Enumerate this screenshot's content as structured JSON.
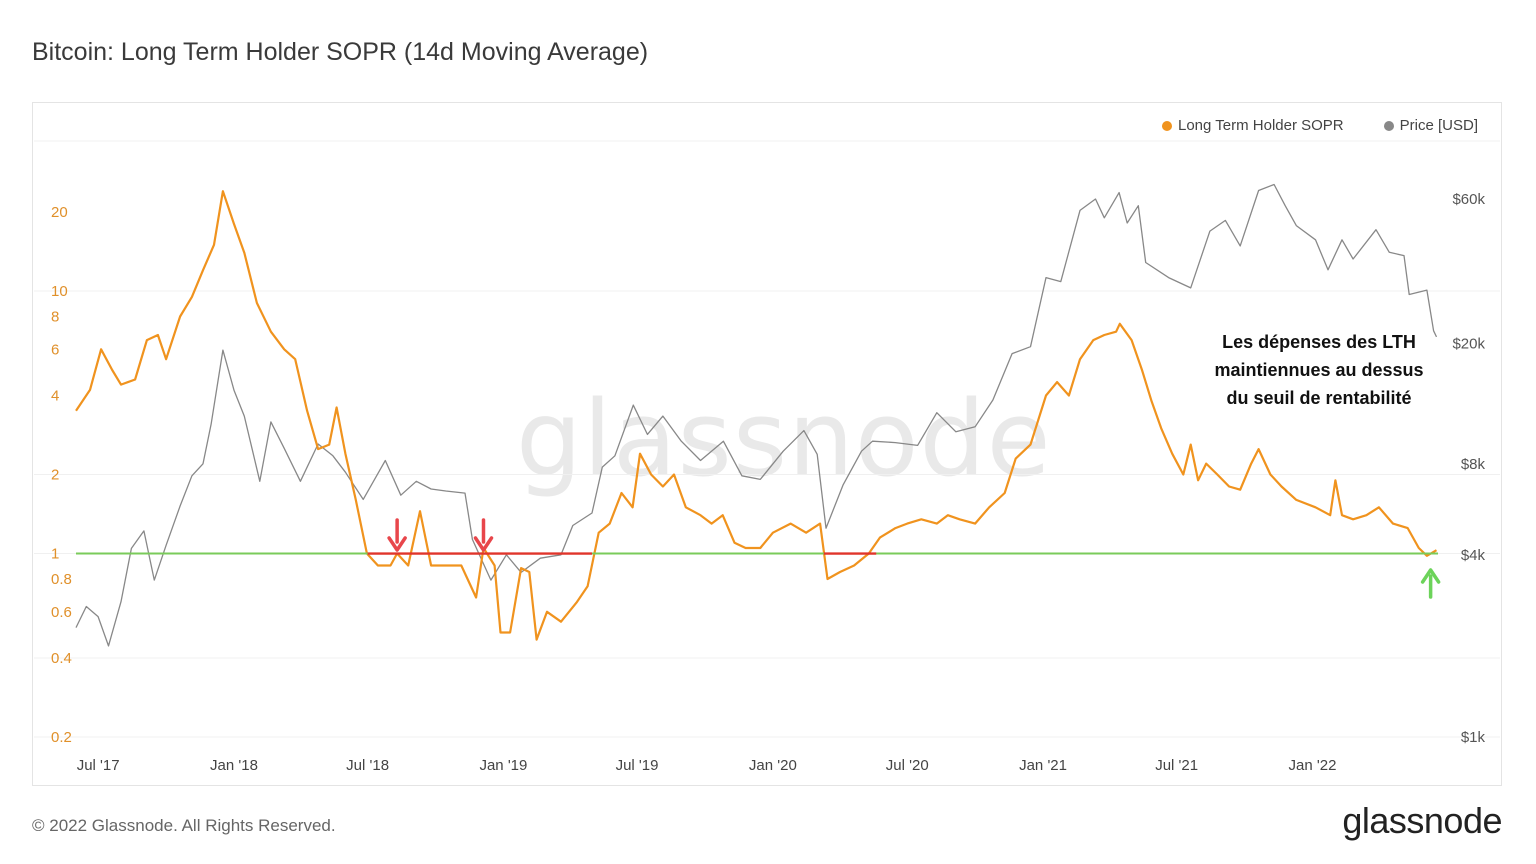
{
  "header": {
    "title": "Bitcoin: Long Term Holder SOPR (14d Moving Average)"
  },
  "footer": {
    "copyright": "© 2022 Glassnode. All Rights Reserved.",
    "brand": "glassnode"
  },
  "watermark": "glassnode",
  "annotation": [
    "Les dépenses des LTH",
    "maintiennues au dessus",
    "du seuil de rentabilité"
  ],
  "colors": {
    "sopr": "#f0931e",
    "price": "#888888",
    "baseline": "#7acb5a",
    "below": "#e0352b",
    "arrow_red": "#e8464b",
    "arrow_green": "#6cd35a"
  },
  "chart_data": {
    "type": "line",
    "legend_position": "top-right",
    "grid": true,
    "x_range": [
      "2017-06-01",
      "2022-06-20"
    ],
    "x_ticks": [
      {
        "date": "2017-07-01",
        "label": "Jul '17"
      },
      {
        "date": "2018-01-01",
        "label": "Jan '18"
      },
      {
        "date": "2018-07-01",
        "label": "Jul '18"
      },
      {
        "date": "2019-01-01",
        "label": "Jan '19"
      },
      {
        "date": "2019-07-01",
        "label": "Jul '19"
      },
      {
        "date": "2020-01-01",
        "label": "Jan '20"
      },
      {
        "date": "2020-07-01",
        "label": "Jul '20"
      },
      {
        "date": "2021-01-01",
        "label": "Jan '21"
      },
      {
        "date": "2021-07-01",
        "label": "Jul '21"
      },
      {
        "date": "2022-01-01",
        "label": "Jan '22"
      }
    ],
    "y_left": {
      "scale": "log",
      "range": [
        0.2,
        35
      ],
      "ticks": [
        {
          "value": 0.2,
          "label": "0.2"
        },
        {
          "value": 0.4,
          "label": "0.4"
        },
        {
          "value": 0.6,
          "label": "0.6"
        },
        {
          "value": 0.8,
          "label": "0.8"
        },
        {
          "value": 1,
          "label": "1"
        },
        {
          "value": 2,
          "label": "2"
        },
        {
          "value": 4,
          "label": "4"
        },
        {
          "value": 6,
          "label": "6"
        },
        {
          "value": 8,
          "label": "8"
        },
        {
          "value": 10,
          "label": "10"
        },
        {
          "value": 20,
          "label": "20"
        }
      ]
    },
    "y_right": {
      "scale": "log",
      "range": [
        1000,
        100000
      ],
      "ticks": [
        {
          "value": 1000,
          "label": "$1k"
        },
        {
          "value": 4000,
          "label": "$4k"
        },
        {
          "value": 8000,
          "label": "$8k"
        },
        {
          "value": 20000,
          "label": "$20k"
        },
        {
          "value": 60000,
          "label": "$60k"
        }
      ]
    },
    "baseline": {
      "value": 1
    },
    "series": [
      {
        "name": "Long Term Holder SOPR",
        "axis": "left",
        "points": [
          [
            "2017-06-01",
            3.5
          ],
          [
            "2017-06-20",
            4.2
          ],
          [
            "2017-07-05",
            6.0
          ],
          [
            "2017-07-20",
            5.0
          ],
          [
            "2017-08-01",
            4.4
          ],
          [
            "2017-08-20",
            4.6
          ],
          [
            "2017-09-05",
            6.5
          ],
          [
            "2017-09-20",
            6.8
          ],
          [
            "2017-10-01",
            5.5
          ],
          [
            "2017-10-20",
            8.0
          ],
          [
            "2017-11-05",
            9.5
          ],
          [
            "2017-11-20",
            12.0
          ],
          [
            "2017-12-05",
            15.0
          ],
          [
            "2017-12-17",
            24.0
          ],
          [
            "2018-01-01",
            18.0
          ],
          [
            "2018-01-15",
            14.0
          ],
          [
            "2018-02-01",
            9.0
          ],
          [
            "2018-02-20",
            7.0
          ],
          [
            "2018-03-10",
            6.0
          ],
          [
            "2018-03-25",
            5.5
          ],
          [
            "2018-04-10",
            3.5
          ],
          [
            "2018-04-25",
            2.5
          ],
          [
            "2018-05-10",
            2.6
          ],
          [
            "2018-05-20",
            3.6
          ],
          [
            "2018-06-01",
            2.4
          ],
          [
            "2018-06-15",
            1.6
          ],
          [
            "2018-06-30",
            1.0
          ],
          [
            "2018-07-15",
            0.9
          ],
          [
            "2018-08-01",
            0.9
          ],
          [
            "2018-08-10",
            1.0
          ],
          [
            "2018-08-25",
            0.9
          ],
          [
            "2018-09-10",
            1.45
          ],
          [
            "2018-09-25",
            0.9
          ],
          [
            "2018-10-15",
            0.9
          ],
          [
            "2018-11-05",
            0.9
          ],
          [
            "2018-11-25",
            0.68
          ],
          [
            "2018-12-05",
            1.05
          ],
          [
            "2018-12-20",
            0.9
          ],
          [
            "2018-12-28",
            0.5
          ],
          [
            "2019-01-10",
            0.5
          ],
          [
            "2019-01-25",
            0.88
          ],
          [
            "2019-02-05",
            0.85
          ],
          [
            "2019-02-15",
            0.47
          ],
          [
            "2019-03-01",
            0.6
          ],
          [
            "2019-03-20",
            0.55
          ],
          [
            "2019-04-10",
            0.65
          ],
          [
            "2019-04-25",
            0.75
          ],
          [
            "2019-05-10",
            1.2
          ],
          [
            "2019-05-25",
            1.3
          ],
          [
            "2019-06-10",
            1.7
          ],
          [
            "2019-06-25",
            1.5
          ],
          [
            "2019-07-05",
            2.4
          ],
          [
            "2019-07-20",
            2.0
          ],
          [
            "2019-08-05",
            1.8
          ],
          [
            "2019-08-20",
            2.0
          ],
          [
            "2019-09-05",
            1.5
          ],
          [
            "2019-09-25",
            1.4
          ],
          [
            "2019-10-10",
            1.3
          ],
          [
            "2019-10-25",
            1.4
          ],
          [
            "2019-11-10",
            1.1
          ],
          [
            "2019-11-25",
            1.05
          ],
          [
            "2019-12-15",
            1.05
          ],
          [
            "2020-01-01",
            1.2
          ],
          [
            "2020-01-25",
            1.3
          ],
          [
            "2020-02-15",
            1.2
          ],
          [
            "2020-03-05",
            1.3
          ],
          [
            "2020-03-15",
            0.8
          ],
          [
            "2020-04-01",
            0.85
          ],
          [
            "2020-04-20",
            0.9
          ],
          [
            "2020-05-10",
            1.0
          ],
          [
            "2020-05-25",
            1.15
          ],
          [
            "2020-06-15",
            1.25
          ],
          [
            "2020-07-01",
            1.3
          ],
          [
            "2020-07-20",
            1.35
          ],
          [
            "2020-08-10",
            1.3
          ],
          [
            "2020-08-25",
            1.4
          ],
          [
            "2020-09-10",
            1.35
          ],
          [
            "2020-10-01",
            1.3
          ],
          [
            "2020-10-20",
            1.5
          ],
          [
            "2020-11-10",
            1.7
          ],
          [
            "2020-11-25",
            2.3
          ],
          [
            "2020-12-15",
            2.6
          ],
          [
            "2021-01-05",
            4.0
          ],
          [
            "2021-01-20",
            4.5
          ],
          [
            "2021-02-05",
            4.0
          ],
          [
            "2021-02-20",
            5.5
          ],
          [
            "2021-03-10",
            6.5
          ],
          [
            "2021-03-25",
            6.8
          ],
          [
            "2021-04-10",
            7.0
          ],
          [
            "2021-04-15",
            7.5
          ],
          [
            "2021-05-01",
            6.5
          ],
          [
            "2021-05-15",
            5.0
          ],
          [
            "2021-05-28",
            3.8
          ],
          [
            "2021-06-10",
            3.0
          ],
          [
            "2021-06-25",
            2.4
          ],
          [
            "2021-07-10",
            2.0
          ],
          [
            "2021-07-20",
            2.6
          ],
          [
            "2021-07-30",
            1.9
          ],
          [
            "2021-08-10",
            2.2
          ],
          [
            "2021-08-25",
            2.0
          ],
          [
            "2021-09-10",
            1.8
          ],
          [
            "2021-09-25",
            1.75
          ],
          [
            "2021-10-10",
            2.2
          ],
          [
            "2021-10-20",
            2.5
          ],
          [
            "2021-11-05",
            2.0
          ],
          [
            "2021-11-20",
            1.8
          ],
          [
            "2021-12-10",
            1.6
          ],
          [
            "2022-01-05",
            1.5
          ],
          [
            "2022-01-25",
            1.4
          ],
          [
            "2022-02-01",
            1.9
          ],
          [
            "2022-02-10",
            1.4
          ],
          [
            "2022-02-25",
            1.35
          ],
          [
            "2022-03-15",
            1.4
          ],
          [
            "2022-04-01",
            1.5
          ],
          [
            "2022-04-20",
            1.3
          ],
          [
            "2022-05-10",
            1.25
          ],
          [
            "2022-05-25",
            1.05
          ],
          [
            "2022-06-05",
            0.98
          ],
          [
            "2022-06-18",
            1.03
          ]
        ]
      },
      {
        "name": "Price [USD]",
        "axis": "right",
        "points": [
          [
            "2017-06-01",
            2300
          ],
          [
            "2017-06-15",
            2700
          ],
          [
            "2017-07-01",
            2500
          ],
          [
            "2017-07-15",
            2000
          ],
          [
            "2017-08-01",
            2800
          ],
          [
            "2017-08-15",
            4200
          ],
          [
            "2017-09-01",
            4800
          ],
          [
            "2017-09-15",
            3300
          ],
          [
            "2017-10-01",
            4300
          ],
          [
            "2017-10-20",
            5800
          ],
          [
            "2017-11-05",
            7300
          ],
          [
            "2017-11-20",
            8000
          ],
          [
            "2017-12-01",
            10800
          ],
          [
            "2017-12-17",
            19000
          ],
          [
            "2018-01-01",
            14000
          ],
          [
            "2018-01-15",
            11500
          ],
          [
            "2018-02-05",
            7000
          ],
          [
            "2018-02-20",
            11000
          ],
          [
            "2018-03-10",
            9000
          ],
          [
            "2018-04-01",
            7000
          ],
          [
            "2018-04-25",
            9300
          ],
          [
            "2018-05-15",
            8500
          ],
          [
            "2018-06-01",
            7500
          ],
          [
            "2018-06-25",
            6100
          ],
          [
            "2018-07-25",
            8200
          ],
          [
            "2018-08-15",
            6300
          ],
          [
            "2018-09-05",
            7000
          ],
          [
            "2018-09-25",
            6600
          ],
          [
            "2018-10-15",
            6500
          ],
          [
            "2018-11-10",
            6400
          ],
          [
            "2018-11-20",
            4500
          ],
          [
            "2018-12-15",
            3300
          ],
          [
            "2019-01-05",
            4000
          ],
          [
            "2019-01-25",
            3500
          ],
          [
            "2019-02-20",
            3900
          ],
          [
            "2019-03-20",
            4000
          ],
          [
            "2019-04-05",
            5000
          ],
          [
            "2019-05-01",
            5500
          ],
          [
            "2019-05-15",
            7800
          ],
          [
            "2019-06-01",
            8500
          ],
          [
            "2019-06-26",
            12500
          ],
          [
            "2019-07-15",
            10000
          ],
          [
            "2019-08-05",
            11500
          ],
          [
            "2019-08-30",
            9500
          ],
          [
            "2019-09-25",
            8200
          ],
          [
            "2019-10-26",
            9500
          ],
          [
            "2019-11-20",
            7300
          ],
          [
            "2019-12-15",
            7100
          ],
          [
            "2020-01-15",
            8800
          ],
          [
            "2020-02-12",
            10300
          ],
          [
            "2020-03-01",
            8600
          ],
          [
            "2020-03-13",
            4900
          ],
          [
            "2020-04-05",
            6800
          ],
          [
            "2020-04-30",
            8800
          ],
          [
            "2020-05-15",
            9500
          ],
          [
            "2020-06-15",
            9400
          ],
          [
            "2020-07-15",
            9200
          ],
          [
            "2020-08-10",
            11800
          ],
          [
            "2020-09-05",
            10200
          ],
          [
            "2020-10-01",
            10600
          ],
          [
            "2020-10-25",
            13000
          ],
          [
            "2020-11-20",
            18500
          ],
          [
            "2020-12-15",
            19500
          ],
          [
            "2021-01-05",
            33000
          ],
          [
            "2021-01-25",
            32000
          ],
          [
            "2021-02-20",
            55000
          ],
          [
            "2021-03-13",
            60000
          ],
          [
            "2021-03-25",
            52000
          ],
          [
            "2021-04-14",
            63000
          ],
          [
            "2021-04-25",
            50000
          ],
          [
            "2021-05-10",
            57000
          ],
          [
            "2021-05-20",
            37000
          ],
          [
            "2021-06-20",
            33000
          ],
          [
            "2021-07-20",
            30500
          ],
          [
            "2021-08-15",
            47000
          ],
          [
            "2021-09-05",
            51000
          ],
          [
            "2021-09-25",
            42000
          ],
          [
            "2021-10-20",
            64000
          ],
          [
            "2021-11-10",
            67000
          ],
          [
            "2021-11-25",
            57000
          ],
          [
            "2021-12-10",
            49000
          ],
          [
            "2022-01-05",
            44000
          ],
          [
            "2022-01-22",
            35000
          ],
          [
            "2022-02-10",
            44000
          ],
          [
            "2022-02-25",
            38000
          ],
          [
            "2022-03-28",
            47500
          ],
          [
            "2022-04-15",
            40000
          ],
          [
            "2022-05-05",
            39000
          ],
          [
            "2022-05-12",
            29000
          ],
          [
            "2022-06-05",
            30000
          ],
          [
            "2022-06-14",
            22000
          ],
          [
            "2022-06-18",
            21000
          ]
        ]
      }
    ],
    "markers": [
      {
        "type": "arrow-down",
        "date": "2018-08-10"
      },
      {
        "type": "arrow-down",
        "date": "2018-12-05"
      },
      {
        "type": "arrow-up",
        "date": "2022-06-10"
      }
    ]
  }
}
